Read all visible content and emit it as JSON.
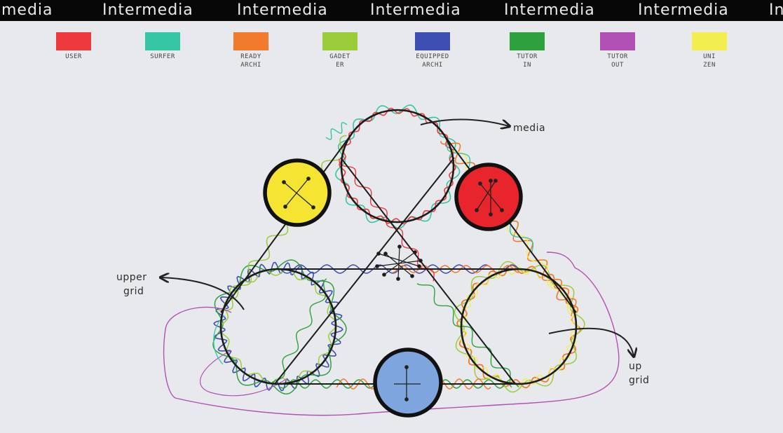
{
  "banner": {
    "words": [
      "media",
      "Intermedia",
      "Intermedia",
      "Intermedia",
      "Intermedia",
      "Intermedia",
      "In"
    ]
  },
  "legend": [
    {
      "label": "USER",
      "color": "#ee3a3d"
    },
    {
      "label": "SURFER",
      "color": "#35c6a3"
    },
    {
      "label": "READY\nARCHI",
      "color": "#f27a2c"
    },
    {
      "label": "GADET\nER",
      "color": "#9acc3b"
    },
    {
      "label": "EQUIPPED\nARCHI",
      "color": "#3d4fb3"
    },
    {
      "label": "TUTOR\nIN",
      "color": "#2ea13f"
    },
    {
      "label": "TUTOR\nOUT",
      "color": "#b251b5"
    },
    {
      "label": "UNI\nZEN",
      "color": "#f3ee4f"
    }
  ],
  "annotations": {
    "media": "media",
    "upper_grid_line1": "upper",
    "upper_grid_line2": "grid",
    "up_grid_line1": "up",
    "up_grid_line2": "grid"
  },
  "nodes": {
    "yellow": "#f5e532",
    "red": "#e8242c",
    "blue": "#7ea5dd"
  }
}
